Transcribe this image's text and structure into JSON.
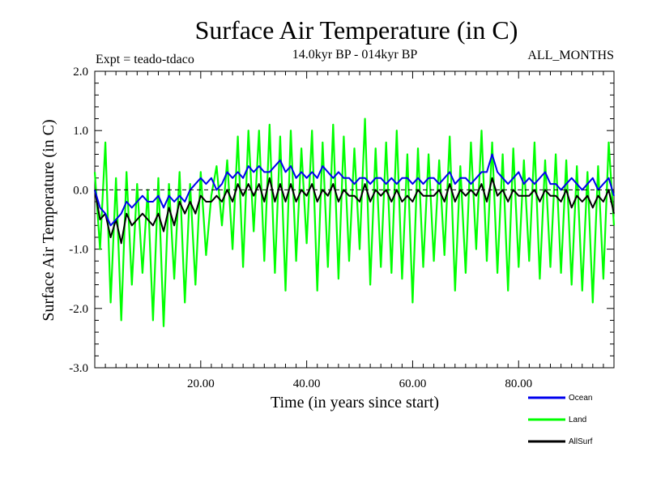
{
  "chart_data": {
    "type": "line",
    "title": "Surface Air Temperature (in C)",
    "subtitle": "14.0kyr BP - 014kyr BP",
    "experiment_label": "Expt = teado-tdaco",
    "period_label": "ALL_MONTHS",
    "xlabel": "Time (in years since start)",
    "ylabel": "Surface Air Temperature (in C)",
    "xlim": [
      0,
      98
    ],
    "ylim": [
      -3.0,
      2.0
    ],
    "x_ticks": [
      20,
      40,
      60,
      80
    ],
    "x_tick_labels": [
      "20.00",
      "40.00",
      "60.00",
      "80.00"
    ],
    "y_ticks": [
      -3.0,
      -2.0,
      -1.0,
      0.0,
      1.0,
      2.0
    ],
    "y_tick_labels": [
      "-3.0",
      "-2.0",
      "-1.0",
      "0.0",
      "1.0",
      "2.0"
    ],
    "reference_line": 0.0,
    "series": [
      {
        "name": "Land",
        "color": "#00ff00",
        "x": [
          0,
          1,
          2,
          3,
          4,
          5,
          6,
          7,
          8,
          9,
          10,
          11,
          12,
          13,
          14,
          15,
          16,
          17,
          18,
          19,
          20,
          21,
          22,
          23,
          24,
          25,
          26,
          27,
          28,
          29,
          30,
          31,
          32,
          33,
          34,
          35,
          36,
          37,
          38,
          39,
          40,
          41,
          42,
          43,
          44,
          45,
          46,
          47,
          48,
          49,
          50,
          51,
          52,
          53,
          54,
          55,
          56,
          57,
          58,
          59,
          60,
          61,
          62,
          63,
          64,
          65,
          66,
          67,
          68,
          69,
          70,
          71,
          72,
          73,
          74,
          75,
          76,
          77,
          78,
          79,
          80,
          81,
          82,
          83,
          84,
          85,
          86,
          87,
          88,
          89,
          90,
          91,
          92,
          93,
          94,
          95,
          96,
          97,
          98
        ],
        "values": [
          0.3,
          -1.0,
          0.8,
          -1.9,
          0.2,
          -2.2,
          0.3,
          -1.6,
          0.1,
          -1.4,
          0.0,
          -2.2,
          0.2,
          -2.3,
          0.1,
          -1.5,
          0.3,
          -1.9,
          0.1,
          -1.6,
          0.3,
          -1.1,
          -0.1,
          0.4,
          -0.6,
          0.5,
          -1.0,
          0.9,
          -1.3,
          1.0,
          -0.7,
          1.0,
          -1.2,
          1.1,
          -1.4,
          0.9,
          -1.7,
          1.0,
          -1.2,
          0.7,
          -0.9,
          1.0,
          -1.7,
          0.8,
          -1.3,
          1.1,
          -1.5,
          0.9,
          -1.2,
          0.7,
          -1.0,
          1.2,
          -1.6,
          0.7,
          -1.3,
          0.8,
          -1.4,
          1.0,
          -1.5,
          0.6,
          -1.9,
          0.7,
          -1.3,
          0.6,
          -1.2,
          0.5,
          -1.1,
          0.9,
          -1.7,
          0.4,
          -1.4,
          0.8,
          -1.0,
          1.0,
          -1.2,
          0.8,
          -1.4,
          0.6,
          -1.7,
          0.7,
          -1.3,
          0.5,
          -1.2,
          0.8,
          -1.5,
          0.5,
          -1.3,
          0.6,
          -1.4,
          0.5,
          -1.6,
          0.4,
          -1.7,
          0.3,
          -1.9,
          0.4,
          -1.5,
          0.8,
          -0.6
        ],
        "legend": "Land"
      },
      {
        "name": "AllSurf",
        "color": "#000000",
        "x": [
          0,
          1,
          2,
          3,
          4,
          5,
          6,
          7,
          8,
          9,
          10,
          11,
          12,
          13,
          14,
          15,
          16,
          17,
          18,
          19,
          20,
          21,
          22,
          23,
          24,
          25,
          26,
          27,
          28,
          29,
          30,
          31,
          32,
          33,
          34,
          35,
          36,
          37,
          38,
          39,
          40,
          41,
          42,
          43,
          44,
          45,
          46,
          47,
          48,
          49,
          50,
          51,
          52,
          53,
          54,
          55,
          56,
          57,
          58,
          59,
          60,
          61,
          62,
          63,
          64,
          65,
          66,
          67,
          68,
          69,
          70,
          71,
          72,
          73,
          74,
          75,
          76,
          77,
          78,
          79,
          80,
          81,
          82,
          83,
          84,
          85,
          86,
          87,
          88,
          89,
          90,
          91,
          92,
          93,
          94,
          95,
          96,
          97,
          98
        ],
        "values": [
          0.0,
          -0.5,
          -0.4,
          -0.8,
          -0.5,
          -0.9,
          -0.4,
          -0.6,
          -0.5,
          -0.4,
          -0.5,
          -0.6,
          -0.4,
          -0.7,
          -0.3,
          -0.6,
          -0.2,
          -0.4,
          -0.2,
          -0.4,
          -0.1,
          -0.2,
          -0.2,
          -0.1,
          -0.2,
          0.0,
          -0.2,
          0.1,
          -0.1,
          0.1,
          -0.1,
          0.1,
          -0.2,
          0.2,
          -0.2,
          0.1,
          -0.2,
          0.1,
          -0.2,
          0.0,
          -0.1,
          0.1,
          -0.2,
          0.0,
          -0.1,
          0.1,
          -0.2,
          0.0,
          -0.1,
          -0.1,
          -0.2,
          0.1,
          -0.2,
          0.0,
          -0.1,
          0.0,
          -0.2,
          0.0,
          -0.2,
          -0.1,
          -0.2,
          0.0,
          -0.1,
          -0.1,
          -0.1,
          0.0,
          -0.2,
          0.1,
          -0.2,
          0.0,
          -0.1,
          0.0,
          -0.1,
          0.1,
          -0.2,
          0.2,
          -0.1,
          0.0,
          -0.2,
          0.0,
          -0.1,
          -0.1,
          -0.1,
          0.0,
          -0.2,
          0.0,
          -0.1,
          -0.1,
          -0.2,
          0.0,
          -0.3,
          -0.1,
          -0.2,
          -0.1,
          -0.3,
          -0.1,
          -0.2,
          0.0,
          -0.4
        ],
        "legend": "AllSurf"
      },
      {
        "name": "Ocean",
        "color": "#0000ee",
        "x": [
          0,
          1,
          2,
          3,
          4,
          5,
          6,
          7,
          8,
          9,
          10,
          11,
          12,
          13,
          14,
          15,
          16,
          17,
          18,
          19,
          20,
          21,
          22,
          23,
          24,
          25,
          26,
          27,
          28,
          29,
          30,
          31,
          32,
          33,
          34,
          35,
          36,
          37,
          38,
          39,
          40,
          41,
          42,
          43,
          44,
          45,
          46,
          47,
          48,
          49,
          50,
          51,
          52,
          53,
          54,
          55,
          56,
          57,
          58,
          59,
          60,
          61,
          62,
          63,
          64,
          65,
          66,
          67,
          68,
          69,
          70,
          71,
          72,
          73,
          74,
          75,
          76,
          77,
          78,
          79,
          80,
          81,
          82,
          83,
          84,
          85,
          86,
          87,
          88,
          89,
          90,
          91,
          92,
          93,
          94,
          95,
          96,
          97,
          98
        ],
        "values": [
          0.0,
          -0.3,
          -0.4,
          -0.6,
          -0.5,
          -0.4,
          -0.2,
          -0.3,
          -0.2,
          -0.1,
          -0.2,
          -0.2,
          -0.1,
          -0.3,
          -0.1,
          -0.2,
          -0.1,
          -0.2,
          0.0,
          0.1,
          0.2,
          0.1,
          0.2,
          0.0,
          0.1,
          0.3,
          0.2,
          0.3,
          0.2,
          0.4,
          0.3,
          0.4,
          0.3,
          0.3,
          0.4,
          0.5,
          0.3,
          0.4,
          0.2,
          0.3,
          0.2,
          0.3,
          0.2,
          0.4,
          0.3,
          0.2,
          0.3,
          0.2,
          0.2,
          0.1,
          0.2,
          0.2,
          0.1,
          0.2,
          0.2,
          0.1,
          0.2,
          0.1,
          0.2,
          0.2,
          0.1,
          0.2,
          0.1,
          0.2,
          0.2,
          0.1,
          0.2,
          0.3,
          0.1,
          0.2,
          0.2,
          0.1,
          0.2,
          0.3,
          0.3,
          0.6,
          0.3,
          0.2,
          0.1,
          0.2,
          0.3,
          0.1,
          0.2,
          0.1,
          0.2,
          0.3,
          0.1,
          0.1,
          0.0,
          0.1,
          0.2,
          0.1,
          0.0,
          0.1,
          0.2,
          0.0,
          0.1,
          0.2,
          -0.1
        ],
        "legend": "Ocean"
      }
    ],
    "legend_order": [
      "Ocean",
      "Land",
      "AllSurf"
    ],
    "legend_position": "bottom-right"
  }
}
